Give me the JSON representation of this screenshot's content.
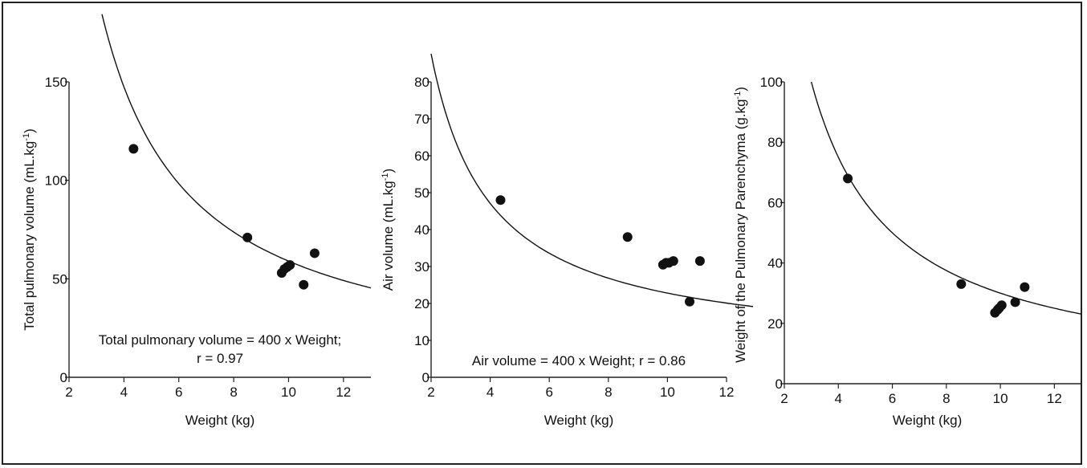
{
  "chart_data": [
    {
      "type": "scatter",
      "ylabel": "Total pulmonary volume (mL.kg",
      "ylabel_sup": "-1",
      "ylabel_end": ")",
      "xlabel": "Weight (kg)",
      "xlim": [
        2,
        13
      ],
      "ylim": [
        0,
        150
      ],
      "xticks": [
        2,
        4,
        6,
        8,
        10,
        12
      ],
      "yticks": [
        0,
        50,
        100,
        150
      ],
      "annotation": [
        "Total pulmonary volume = 400 x Weight;",
        "r = 0.97"
      ],
      "points": [
        {
          "x": 4.35,
          "y": 116
        },
        {
          "x": 8.5,
          "y": 71
        },
        {
          "x": 9.75,
          "y": 53
        },
        {
          "x": 9.85,
          "y": 55
        },
        {
          "x": 9.95,
          "y": 56
        },
        {
          "x": 10.05,
          "y": 57
        },
        {
          "x": 10.55,
          "y": 47
        },
        {
          "x": 10.95,
          "y": 63
        }
      ],
      "curve": {
        "k": 590,
        "x_start": 3.2,
        "x_end": 13
      }
    },
    {
      "type": "scatter",
      "ylabel": "Air volume (mL.kg",
      "ylabel_sup": "-1",
      "ylabel_end": ")",
      "xlabel": "Weight (kg)",
      "xlim": [
        2,
        12
      ],
      "ylim": [
        0,
        80
      ],
      "xticks": [
        2,
        4,
        6,
        8,
        10,
        12
      ],
      "yticks": [
        0,
        10,
        20,
        30,
        40,
        50,
        60,
        70,
        80
      ],
      "annotation": [
        "Air volume = 400 x Weight; r = 0.86"
      ],
      "points": [
        {
          "x": 4.35,
          "y": 48
        },
        {
          "x": 8.65,
          "y": 38
        },
        {
          "x": 9.85,
          "y": 30.5
        },
        {
          "x": 9.95,
          "y": 31
        },
        {
          "x": 10.05,
          "y": 31
        },
        {
          "x": 10.2,
          "y": 31.5
        },
        {
          "x": 10.75,
          "y": 20.5
        },
        {
          "x": 11.1,
          "y": 31.5
        }
      ],
      "curve": {
        "k": 162,
        "x_start": 2.0,
        "x_end": 12.9,
        "offset": 6.6
      }
    },
    {
      "type": "scatter",
      "ylabel": "Weight of the Pulmonary Parenchyma (g.kg",
      "ylabel_sup": "-1",
      "ylabel_end": ")",
      "xlabel": "Weight (kg)",
      "xlim": [
        2,
        13
      ],
      "ylim": [
        0,
        100
      ],
      "xticks": [
        2,
        4,
        6,
        8,
        10,
        12
      ],
      "yticks": [
        0,
        20,
        40,
        60,
        80,
        100
      ],
      "annotation": [],
      "points": [
        {
          "x": 4.35,
          "y": 68
        },
        {
          "x": 8.55,
          "y": 33
        },
        {
          "x": 9.8,
          "y": 23.5
        },
        {
          "x": 9.9,
          "y": 24.5
        },
        {
          "x": 9.95,
          "y": 25
        },
        {
          "x": 10.05,
          "y": 26
        },
        {
          "x": 10.55,
          "y": 27
        },
        {
          "x": 10.9,
          "y": 32
        }
      ],
      "curve": {
        "k": 300,
        "x_start": 3.0,
        "x_end": 13
      }
    }
  ]
}
